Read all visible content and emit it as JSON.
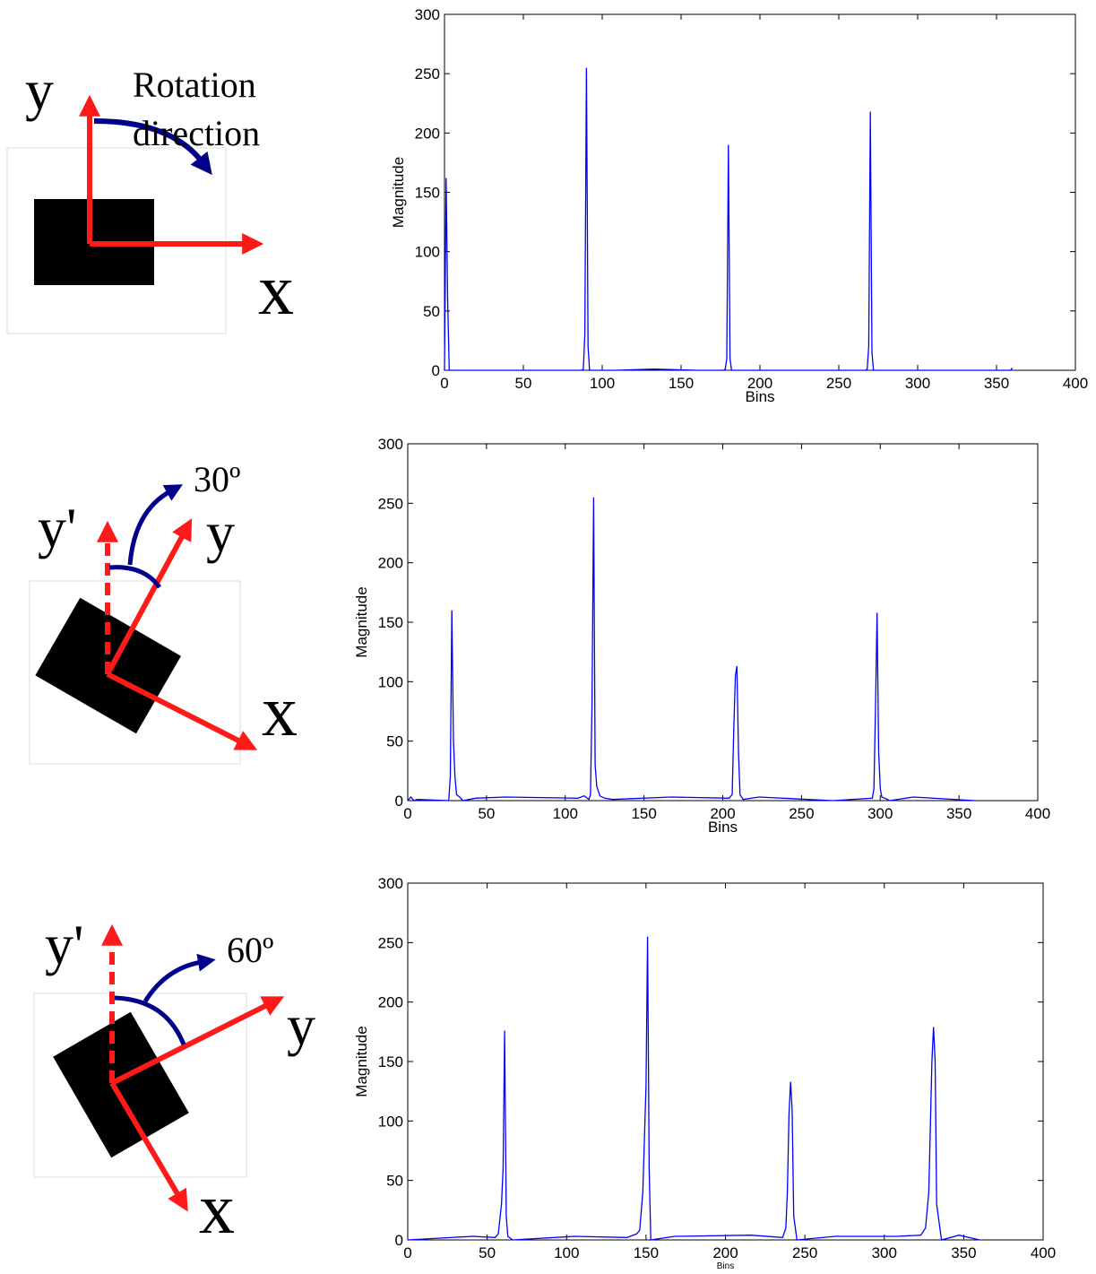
{
  "diagrams": [
    {
      "y": "y",
      "rotation": [
        "Rotation",
        "direction"
      ],
      "x": "x"
    },
    {
      "y_prime": "y'",
      "angle": "30º",
      "y": "y",
      "x": "x"
    },
    {
      "y_prime": "y'",
      "angle": "60º",
      "y": "y",
      "x": "x"
    }
  ],
  "chart_data": [
    {
      "type": "line",
      "ylabel": "Magnitude",
      "xlabel": "Bins",
      "color": "#0000ff",
      "x": [
        0,
        1,
        2,
        3,
        40,
        80,
        87,
        88,
        89,
        90,
        91,
        92,
        108,
        133,
        160,
        177,
        178,
        179,
        180,
        181,
        182,
        195,
        244,
        267,
        268,
        269,
        270,
        271,
        272,
        275,
        302,
        335,
        359,
        360
      ],
      "values": [
        0,
        162,
        60,
        0,
        0,
        0,
        0,
        1,
        30,
        255,
        20,
        0,
        0,
        1,
        0,
        0,
        1,
        10,
        190,
        10,
        0,
        0,
        0,
        0,
        1,
        20,
        218,
        15,
        0,
        0,
        0,
        0,
        0,
        2
      ],
      "xlim": [
        0,
        400
      ],
      "ylim": [
        0,
        300
      ],
      "xticks": [
        0,
        50,
        100,
        150,
        200,
        250,
        300,
        350,
        400
      ],
      "yticks": [
        0,
        50,
        100,
        150,
        200,
        250,
        300
      ]
    },
    {
      "type": "line",
      "ylabel": "Magnitude",
      "xlabel": "Bins",
      "color": "#0000ff",
      "x": [
        0,
        2,
        4,
        6,
        26,
        27,
        28,
        29,
        30,
        31,
        33,
        35,
        43,
        62,
        108,
        112,
        115,
        116,
        117,
        118,
        119,
        120,
        122,
        125,
        130,
        167,
        204,
        206,
        207,
        208,
        209,
        210,
        211,
        213,
        223,
        270,
        295,
        296,
        297,
        298,
        299,
        300,
        301,
        303,
        306,
        321,
        360
      ],
      "values": [
        0,
        3,
        0,
        1,
        0,
        20,
        160,
        50,
        20,
        5,
        3,
        0,
        2,
        3,
        2,
        4,
        1,
        5,
        80,
        255,
        30,
        12,
        4,
        2,
        1,
        3,
        2,
        5,
        60,
        105,
        113,
        40,
        5,
        1,
        3,
        0,
        2,
        10,
        80,
        158,
        40,
        10,
        3,
        2,
        0,
        3,
        0
      ],
      "xlim": [
        0,
        400
      ],
      "ylim": [
        0,
        300
      ],
      "xticks": [
        0,
        50,
        100,
        150,
        200,
        250,
        300,
        350,
        400
      ],
      "yticks": [
        0,
        50,
        100,
        150,
        200,
        250,
        300
      ]
    },
    {
      "type": "line",
      "ylabel": "Magnitude",
      "xlabel": "Bins",
      "color": "#0000ff",
      "x": [
        0,
        41,
        55,
        57,
        59,
        60,
        61,
        62,
        63,
        66,
        105,
        138,
        144,
        146,
        148,
        150,
        151,
        152,
        153,
        168,
        216,
        236,
        238,
        239,
        240,
        241,
        242,
        243,
        245,
        269,
        308,
        323,
        326,
        328,
        330,
        331,
        332,
        333,
        336,
        347,
        360
      ],
      "values": [
        0,
        3,
        2,
        5,
        30,
        60,
        176,
        20,
        3,
        0,
        3,
        2,
        5,
        8,
        40,
        130,
        255,
        60,
        0,
        3,
        4,
        2,
        10,
        40,
        105,
        133,
        110,
        20,
        0,
        3,
        3,
        4,
        10,
        40,
        150,
        179,
        150,
        30,
        0,
        4,
        0
      ],
      "xlim": [
        0,
        400
      ],
      "ylim": [
        0,
        300
      ],
      "xticks": [
        0,
        50,
        100,
        150,
        200,
        250,
        300,
        350,
        400
      ],
      "yticks": [
        0,
        50,
        100,
        150,
        200,
        250,
        300
      ]
    }
  ]
}
